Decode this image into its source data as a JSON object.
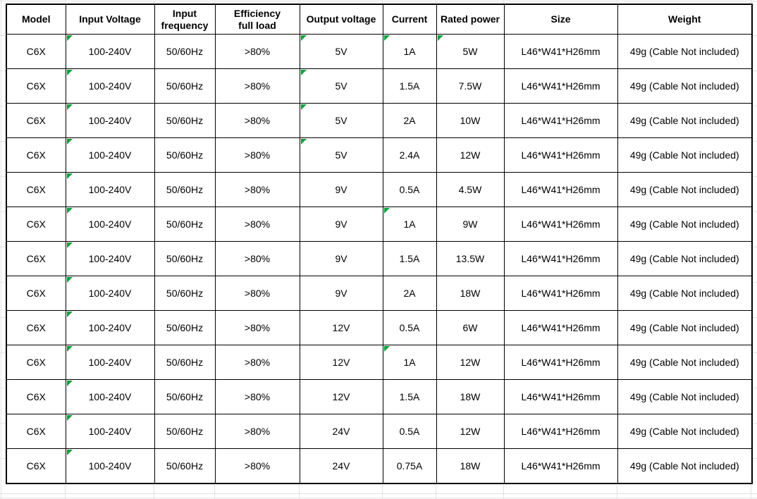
{
  "colors": {
    "page_background": "#ffffff",
    "table_border": "#000000",
    "text": "#000000",
    "gridline": "#e2e2e2",
    "error_flag_green": "#00a33c"
  },
  "table": {
    "columns": [
      {
        "key": "model",
        "label": "Model"
      },
      {
        "key": "input-voltage",
        "label": "Input Voltage"
      },
      {
        "key": "input-frequency",
        "label": "Input\nfrequency"
      },
      {
        "key": "efficiency",
        "label": "Efficiency\nfull load"
      },
      {
        "key": "output-voltage",
        "label": "Output voltage"
      },
      {
        "key": "current",
        "label": "Current"
      },
      {
        "key": "rated-power",
        "label": "Rated power"
      },
      {
        "key": "size",
        "label": "Size"
      },
      {
        "key": "weight",
        "label": "Weight"
      }
    ],
    "rows": [
      {
        "cells": [
          "C6X",
          "100-240V",
          "50/60Hz",
          ">80%",
          "5V",
          "1A",
          "5W",
          "L46*W41*H26mm",
          "49g (Cable Not included)"
        ],
        "flags": [
          1,
          4,
          5,
          6
        ]
      },
      {
        "cells": [
          "C6X",
          "100-240V",
          "50/60Hz",
          ">80%",
          "5V",
          "1.5A",
          "7.5W",
          "L46*W41*H26mm",
          "49g (Cable Not included)"
        ],
        "flags": [
          1,
          4
        ]
      },
      {
        "cells": [
          "C6X",
          "100-240V",
          "50/60Hz",
          ">80%",
          "5V",
          "2A",
          "10W",
          "L46*W41*H26mm",
          "49g (Cable Not included)"
        ],
        "flags": [
          1,
          4
        ]
      },
      {
        "cells": [
          "C6X",
          "100-240V",
          "50/60Hz",
          ">80%",
          "5V",
          "2.4A",
          "12W",
          "L46*W41*H26mm",
          "49g (Cable Not included)"
        ],
        "flags": [
          1,
          4
        ]
      },
      {
        "cells": [
          "C6X",
          "100-240V",
          "50/60Hz",
          ">80%",
          "9V",
          "0.5A",
          "4.5W",
          "L46*W41*H26mm",
          "49g (Cable Not included)"
        ],
        "flags": [
          1
        ]
      },
      {
        "cells": [
          "C6X",
          "100-240V",
          "50/60Hz",
          ">80%",
          "9V",
          "1A",
          "9W",
          "L46*W41*H26mm",
          "49g (Cable Not included)"
        ],
        "flags": [
          1,
          5
        ]
      },
      {
        "cells": [
          "C6X",
          "100-240V",
          "50/60Hz",
          ">80%",
          "9V",
          "1.5A",
          "13.5W",
          "L46*W41*H26mm",
          "49g (Cable Not included)"
        ],
        "flags": [
          1
        ]
      },
      {
        "cells": [
          "C6X",
          "100-240V",
          "50/60Hz",
          ">80%",
          "9V",
          "2A",
          "18W",
          "L46*W41*H26mm",
          "49g (Cable Not included)"
        ],
        "flags": [
          1
        ]
      },
      {
        "cells": [
          "C6X",
          "100-240V",
          "50/60Hz",
          ">80%",
          "12V",
          "0.5A",
          "6W",
          "L46*W41*H26mm",
          "49g (Cable Not included)"
        ],
        "flags": [
          1
        ]
      },
      {
        "cells": [
          "C6X",
          "100-240V",
          "50/60Hz",
          ">80%",
          "12V",
          "1A",
          "12W",
          "L46*W41*H26mm",
          "49g (Cable Not included)"
        ],
        "flags": [
          1,
          5
        ]
      },
      {
        "cells": [
          "C6X",
          "100-240V",
          "50/60Hz",
          ">80%",
          "12V",
          "1.5A",
          "18W",
          "L46*W41*H26mm",
          "49g (Cable Not included)"
        ],
        "flags": [
          1
        ]
      },
      {
        "cells": [
          "C6X",
          "100-240V",
          "50/60Hz",
          ">80%",
          "24V",
          "0.5A",
          "12W",
          "L46*W41*H26mm",
          "49g (Cable Not included)"
        ],
        "flags": [
          1
        ]
      },
      {
        "cells": [
          "C6X",
          "100-240V",
          "50/60Hz",
          ">80%",
          "24V",
          "0.75A",
          "18W",
          "L46*W41*H26mm",
          "49g (Cable Not included)"
        ],
        "flags": [
          1
        ]
      }
    ]
  }
}
